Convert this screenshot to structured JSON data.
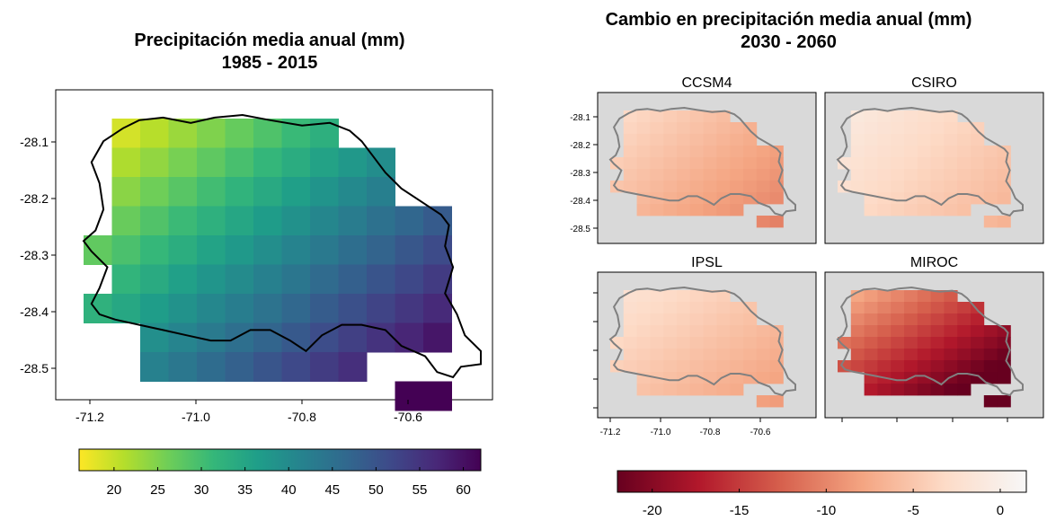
{
  "left_map": {
    "title_line1": "Precipitación media anual (mm)",
    "title_line2": "1985 - 2015",
    "y_ticks": [
      "-28.1",
      "-28.2",
      "-28.3",
      "-28.4",
      "-28.5"
    ],
    "x_ticks": [
      "-71.2",
      "-71.0",
      "-70.8",
      "-70.6"
    ],
    "colorbar_ticks": [
      "20",
      "25",
      "30",
      "35",
      "40",
      "45",
      "50",
      "55",
      "60"
    ],
    "colorbar_range": [
      16,
      62
    ]
  },
  "right_maps": {
    "title_line1": "Cambio en precipitación media anual (mm)",
    "title_line2": "2030 - 2060",
    "panels": [
      "CCSM4",
      "CSIRO",
      "IPSL",
      "MIROC"
    ],
    "y_ticks": [
      "-28.1",
      "-28.2",
      "-28.3",
      "-28.4",
      "-28.5"
    ],
    "x_ticks": [
      "-71.2",
      "-71.0",
      "-70.8",
      "-70.6"
    ],
    "colorbar_ticks": [
      "-20",
      "-15",
      "-10",
      "-5",
      "0"
    ],
    "colorbar_range": [
      -22,
      1.5
    ]
  },
  "colors": {
    "viridis": [
      "#fde725",
      "#b5de2b",
      "#6ece58",
      "#35b779",
      "#1f9e89",
      "#26828e",
      "#31688e",
      "#3e4989",
      "#482878",
      "#440154"
    ],
    "rdbu_neg": [
      "#67001f",
      "#b2182b",
      "#d6604d",
      "#f4a582",
      "#fddbc7",
      "#f7f7f7"
    ],
    "panel_bg": "#d9d9d9",
    "outline_left": "#000000",
    "outline_right": "#808080"
  }
}
